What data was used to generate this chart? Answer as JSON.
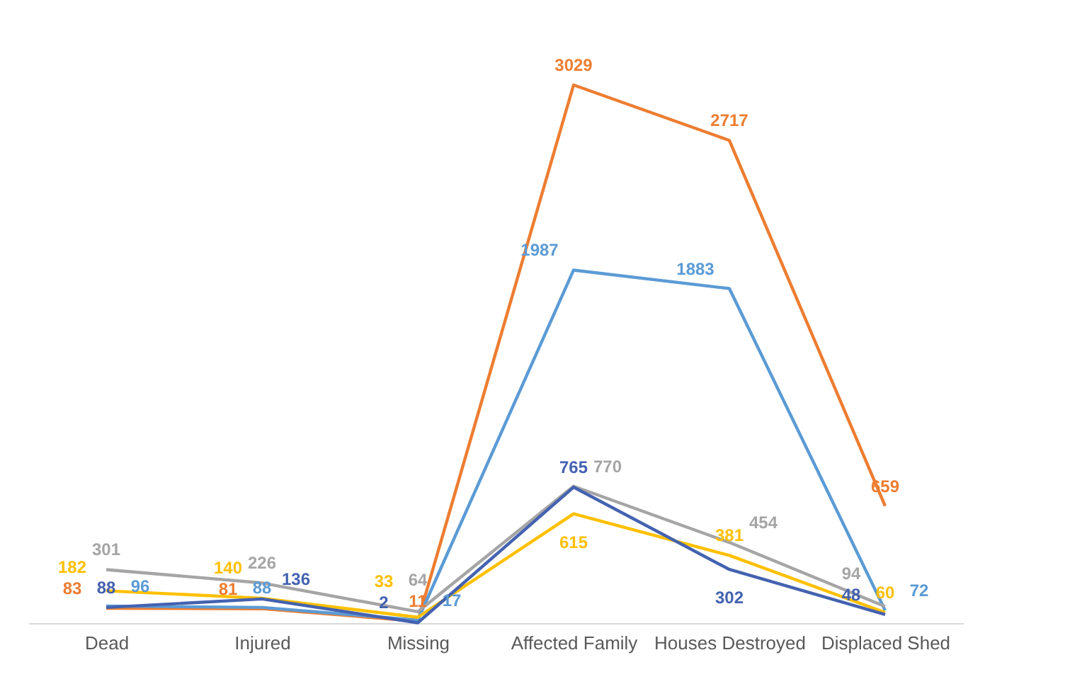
{
  "chart_data": {
    "type": "line",
    "categories": [
      "Dead",
      "Injured",
      "Missing",
      "Affected Family",
      "Houses Destroyed",
      "Displaced Shed"
    ],
    "series": [
      {
        "color": "#ed7d31",
        "values": [
          83,
          81,
          11,
          3029,
          2717,
          659
        ]
      },
      {
        "color": "#5b9bd5",
        "values": [
          96,
          88,
          17,
          1987,
          1883,
          72
        ]
      },
      {
        "color": "#a5a5a5",
        "values": [
          301,
          226,
          64,
          770,
          454,
          94
        ]
      },
      {
        "color": "#ffc000",
        "values": [
          182,
          140,
          33,
          615,
          381,
          60
        ]
      },
      {
        "color": "#4462b0",
        "values": [
          88,
          136,
          2,
          765,
          302,
          48
        ]
      }
    ],
    "data_labels": true,
    "legend": false,
    "grid": false,
    "marker": "none",
    "line_style": "solid"
  }
}
